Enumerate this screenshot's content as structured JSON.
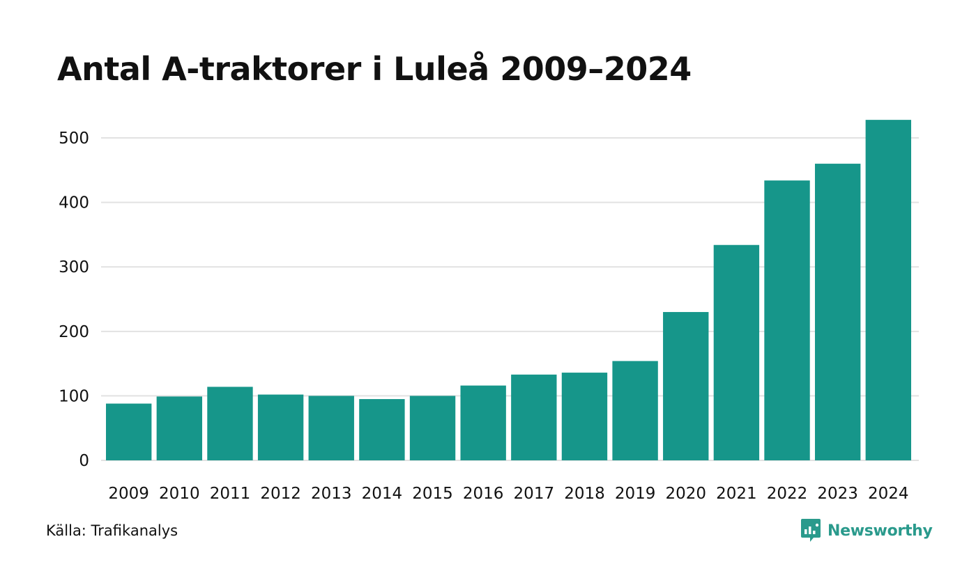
{
  "title": "Antal A-traktorer i Luleå 2009–2024",
  "source": "Källa: Trafikanalys",
  "brand": {
    "name": "Newsworthy",
    "color": "#2a9a8c",
    "icon": "newsworthy-logo-icon"
  },
  "colors": {
    "bar": "#16968a",
    "grid": "#e2e2e2"
  },
  "chart_data": {
    "type": "bar",
    "title": "Antal A-traktorer i Luleå 2009–2024",
    "xlabel": "",
    "ylabel": "",
    "categories": [
      "2009",
      "2010",
      "2011",
      "2012",
      "2013",
      "2014",
      "2015",
      "2016",
      "2017",
      "2018",
      "2019",
      "2020",
      "2021",
      "2022",
      "2023",
      "2024"
    ],
    "values": [
      88,
      99,
      114,
      102,
      100,
      95,
      100,
      116,
      133,
      136,
      154,
      230,
      334,
      434,
      460,
      528
    ],
    "ylim": [
      0,
      540
    ],
    "yticks": [
      0,
      100,
      200,
      300,
      400,
      500
    ],
    "grid": true,
    "legend": "none"
  }
}
